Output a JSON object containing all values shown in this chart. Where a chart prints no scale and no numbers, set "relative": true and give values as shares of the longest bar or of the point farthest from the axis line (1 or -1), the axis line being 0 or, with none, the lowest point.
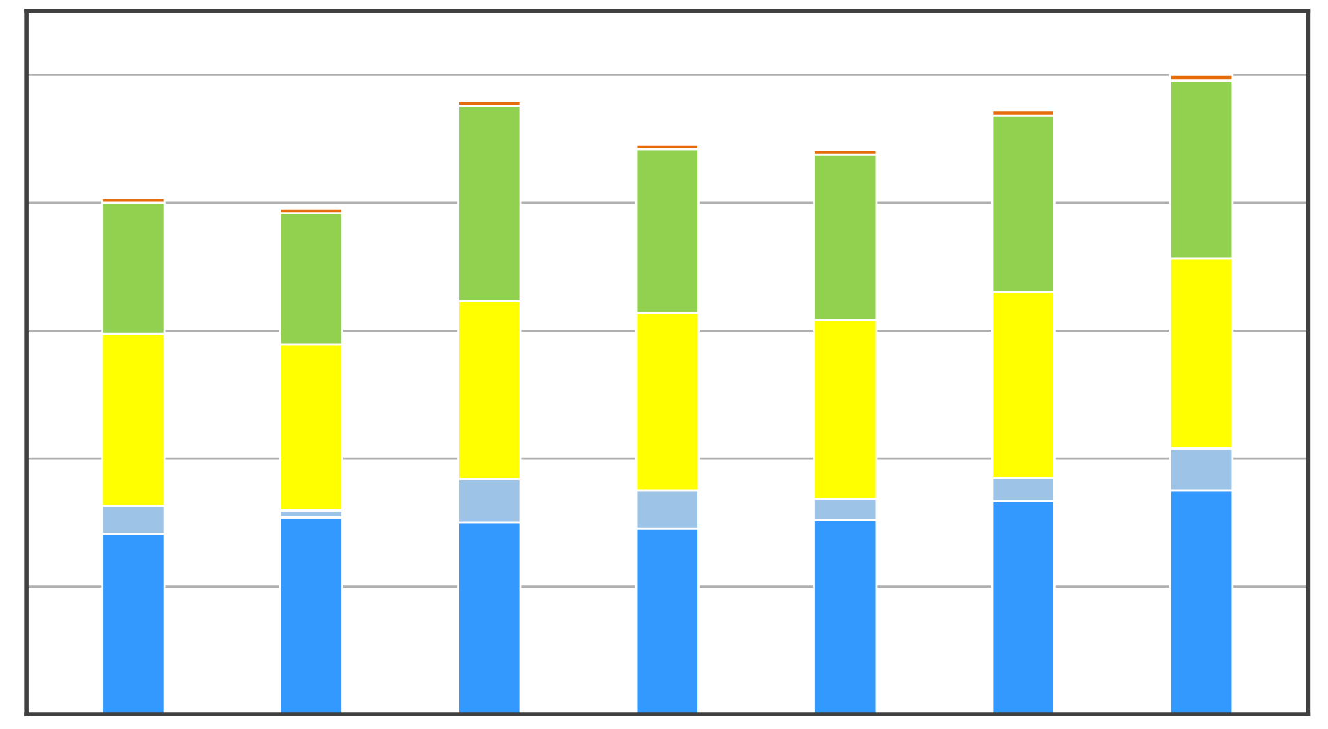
{
  "chart_data": {
    "type": "bar",
    "relative": true,
    "stacked": true,
    "grid": "y",
    "tick_labels": false,
    "categories": [
      null,
      null,
      null,
      null,
      null,
      null,
      null
    ],
    "series": [
      {
        "color": "#3399ff",
        "values": [
          0.282,
          0.308,
          0.3,
          0.291,
          0.304,
          0.333,
          0.35
        ]
      },
      {
        "color": "#9dc3e6",
        "values": [
          0.044,
          0.011,
          0.068,
          0.059,
          0.033,
          0.037,
          0.066
        ]
      },
      {
        "color": "#ffff00",
        "values": [
          0.269,
          0.26,
          0.278,
          0.278,
          0.28,
          0.291,
          0.297
        ]
      },
      {
        "color": "#92d050",
        "values": [
          0.205,
          0.205,
          0.306,
          0.256,
          0.258,
          0.275,
          0.278
        ]
      },
      {
        "color": "#e46c0a",
        "values": [
          0.007,
          0.007,
          0.007,
          0.007,
          0.007,
          0.009,
          0.009
        ]
      }
    ]
  }
}
